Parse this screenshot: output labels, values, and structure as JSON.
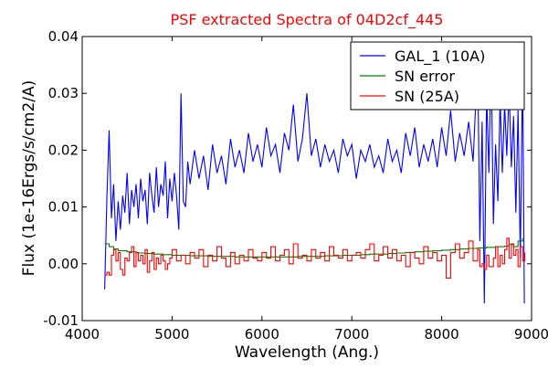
{
  "chart_data": {
    "type": "line",
    "title": "PSF extracted Spectra of 04D2cf_445",
    "xlabel": "Wavelength (Ang.)",
    "ylabel": "Flux (1e-16Ergs/s/cm2/A)",
    "xlim": [
      4000,
      9000
    ],
    "ylim": [
      -0.01,
      0.04
    ],
    "xticks": [
      4000,
      5000,
      6000,
      7000,
      8000,
      9000
    ],
    "yticks": [
      -0.01,
      0.0,
      0.01,
      0.02,
      0.03,
      0.04
    ],
    "xtick_labels": [
      "4000",
      "5000",
      "6000",
      "7000",
      "8000",
      "9000"
    ],
    "ytick_labels": [
      "-0.01",
      "0.00",
      "0.01",
      "0.02",
      "0.03",
      "0.04"
    ],
    "grid": false,
    "legend_position": "top-right",
    "title_color": "#ff0000",
    "series": [
      {
        "name": "GAL_1 (10A)",
        "color": "#0000ff",
        "style": "line",
        "x": [
          4250,
          4275,
          4300,
          4325,
          4350,
          4375,
          4400,
          4425,
          4450,
          4475,
          4500,
          4525,
          4550,
          4575,
          4600,
          4625,
          4650,
          4675,
          4700,
          4725,
          4750,
          4775,
          4800,
          4825,
          4850,
          4875,
          4900,
          4925,
          4950,
          4975,
          5000,
          5025,
          5050,
          5075,
          5100,
          5125,
          5150,
          5175,
          5200,
          5250,
          5300,
          5350,
          5400,
          5450,
          5500,
          5550,
          5600,
          5650,
          5700,
          5750,
          5800,
          5850,
          5900,
          5950,
          6000,
          6050,
          6100,
          6150,
          6200,
          6250,
          6300,
          6350,
          6400,
          6450,
          6500,
          6550,
          6600,
          6650,
          6700,
          6750,
          6800,
          6850,
          6900,
          6950,
          7000,
          7050,
          7100,
          7150,
          7200,
          7250,
          7300,
          7350,
          7400,
          7450,
          7500,
          7550,
          7600,
          7650,
          7700,
          7750,
          7800,
          7850,
          7900,
          7950,
          8000,
          8050,
          8100,
          8150,
          8200,
          8250,
          8300,
          8350,
          8400,
          8425,
          8450,
          8475,
          8500,
          8525,
          8550,
          8575,
          8600,
          8625,
          8650,
          8675,
          8700,
          8725,
          8750,
          8775,
          8800,
          8825,
          8850,
          8875,
          8900,
          8920
        ],
        "y": [
          -0.0045,
          0.012,
          0.0235,
          0.008,
          0.014,
          0.004,
          0.011,
          0.006,
          0.012,
          0.009,
          0.016,
          0.007,
          0.013,
          0.01,
          0.014,
          0.008,
          0.015,
          0.011,
          0.013,
          0.007,
          0.016,
          0.012,
          0.009,
          0.017,
          0.01,
          0.014,
          0.012,
          0.018,
          0.008,
          0.015,
          0.011,
          0.016,
          0.012,
          0.006,
          0.03,
          0.011,
          0.01,
          0.018,
          0.014,
          0.02,
          0.015,
          0.019,
          0.013,
          0.021,
          0.016,
          0.019,
          0.014,
          0.022,
          0.017,
          0.02,
          0.016,
          0.023,
          0.018,
          0.021,
          0.017,
          0.024,
          0.019,
          0.021,
          0.016,
          0.023,
          0.02,
          0.028,
          0.018,
          0.022,
          0.03,
          0.019,
          0.022,
          0.017,
          0.021,
          0.018,
          0.02,
          0.016,
          0.022,
          0.019,
          0.021,
          0.015,
          0.02,
          0.018,
          0.021,
          0.017,
          0.019,
          0.016,
          0.022,
          0.018,
          0.02,
          0.016,
          0.023,
          0.019,
          0.024,
          0.017,
          0.021,
          0.018,
          0.022,
          0.017,
          0.024,
          0.019,
          0.027,
          0.018,
          0.023,
          0.019,
          0.025,
          0.018,
          0.036,
          0.004,
          0.025,
          -0.007,
          0.03,
          0.016,
          0.037,
          0.007,
          0.021,
          0.011,
          0.029,
          0.016,
          0.028,
          0.019,
          0.031,
          0.017,
          0.026,
          0.009,
          0.027,
          0.001,
          0.035,
          -0.007
        ]
      },
      {
        "name": "SN error",
        "color": "#008000",
        "style": "step",
        "x": [
          4250,
          4300,
          4350,
          4400,
          4500,
          4600,
          4700,
          4800,
          4900,
          5000,
          5100,
          5200,
          5300,
          5400,
          5500,
          5600,
          5700,
          5800,
          5900,
          6000,
          6100,
          6200,
          6300,
          6400,
          6500,
          6600,
          6700,
          6800,
          6900,
          7000,
          7100,
          7200,
          7300,
          7400,
          7500,
          7600,
          7700,
          7800,
          7900,
          8000,
          8100,
          8200,
          8300,
          8400,
          8500,
          8600,
          8700,
          8750,
          8800,
          8850,
          8900
        ],
        "y": [
          0.0035,
          0.003,
          0.0026,
          0.0023,
          0.0021,
          0.0019,
          0.0018,
          0.0017,
          0.0016,
          0.0015,
          0.0015,
          0.0014,
          0.0014,
          0.0013,
          0.0013,
          0.0013,
          0.0012,
          0.0012,
          0.0012,
          0.0012,
          0.0012,
          0.0012,
          0.0012,
          0.0013,
          0.0013,
          0.0013,
          0.0014,
          0.0014,
          0.0015,
          0.0015,
          0.0016,
          0.0017,
          0.0017,
          0.0018,
          0.0019,
          0.002,
          0.0021,
          0.0022,
          0.0023,
          0.0024,
          0.0025,
          0.0026,
          0.0027,
          0.0028,
          0.0029,
          0.003,
          0.0031,
          0.0034,
          0.003,
          0.004,
          0.0045
        ]
      },
      {
        "name": "SN (25A)",
        "color": "#ff0000",
        "style": "step",
        "x": [
          4250,
          4275,
          4300,
          4325,
          4350,
          4375,
          4400,
          4425,
          4450,
          4475,
          4500,
          4525,
          4550,
          4575,
          4600,
          4625,
          4650,
          4675,
          4700,
          4725,
          4750,
          4775,
          4800,
          4825,
          4850,
          4875,
          4900,
          4925,
          4950,
          4975,
          5000,
          5050,
          5100,
          5150,
          5200,
          5250,
          5300,
          5350,
          5400,
          5450,
          5500,
          5550,
          5600,
          5650,
          5700,
          5750,
          5800,
          5850,
          5900,
          5950,
          6000,
          6050,
          6100,
          6150,
          6200,
          6250,
          6300,
          6350,
          6400,
          6450,
          6500,
          6550,
          6600,
          6650,
          6700,
          6750,
          6800,
          6850,
          6900,
          6950,
          7000,
          7050,
          7100,
          7150,
          7200,
          7250,
          7300,
          7350,
          7400,
          7450,
          7500,
          7550,
          7600,
          7650,
          7700,
          7750,
          7800,
          7850,
          7900,
          7950,
          8000,
          8050,
          8100,
          8150,
          8200,
          8250,
          8300,
          8350,
          8400,
          8425,
          8450,
          8475,
          8500,
          8525,
          8550,
          8575,
          8600,
          8625,
          8650,
          8675,
          8700,
          8725,
          8750,
          8775,
          8800,
          8825,
          8850,
          8875,
          8900,
          8925
        ],
        "y": [
          -0.002,
          -0.0015,
          -0.002,
          0.0015,
          0.0025,
          0.0005,
          0.002,
          -0.001,
          -0.002,
          0.001,
          0.0005,
          0.002,
          0.003,
          -0.0005,
          0.002,
          0.0005,
          0.0015,
          0.0,
          0.0025,
          -0.0015,
          0.0005,
          0.002,
          -0.001,
          0.001,
          0.0,
          0.0015,
          0.0005,
          -0.001,
          0.0,
          0.001,
          0.0025,
          0.0005,
          0.0015,
          0.0,
          0.002,
          0.001,
          0.0025,
          -0.0005,
          0.0015,
          0.0005,
          0.003,
          0.001,
          -0.0005,
          0.002,
          0.0,
          0.0015,
          0.0005,
          0.0025,
          0.001,
          0.0005,
          0.002,
          0.001,
          0.003,
          0.0005,
          0.0015,
          0.0025,
          0.0,
          0.0035,
          0.001,
          0.0015,
          0.0005,
          0.0025,
          0.001,
          0.002,
          0.0005,
          0.003,
          0.0015,
          0.001,
          0.0025,
          0.0005,
          0.0015,
          0.002,
          0.001,
          0.0025,
          0.0035,
          0.0005,
          0.0015,
          0.003,
          0.001,
          0.0025,
          0.0005,
          0.0015,
          -0.0005,
          0.002,
          0.001,
          0.0,
          0.003,
          0.001,
          0.002,
          0.0005,
          0.0015,
          -0.0025,
          0.002,
          0.0035,
          0.001,
          0.002,
          0.004,
          0.0005,
          0.0025,
          -0.0005,
          0.0,
          -0.001,
          0.0015,
          -0.0005,
          -0.0005,
          0.001,
          0.003,
          -0.0005,
          0.0015,
          0.0,
          0.0025,
          0.0045,
          0.001,
          0.0035,
          0.0015,
          0.0025,
          -0.0005,
          0.003,
          0.0005,
          0.002
        ]
      }
    ]
  }
}
